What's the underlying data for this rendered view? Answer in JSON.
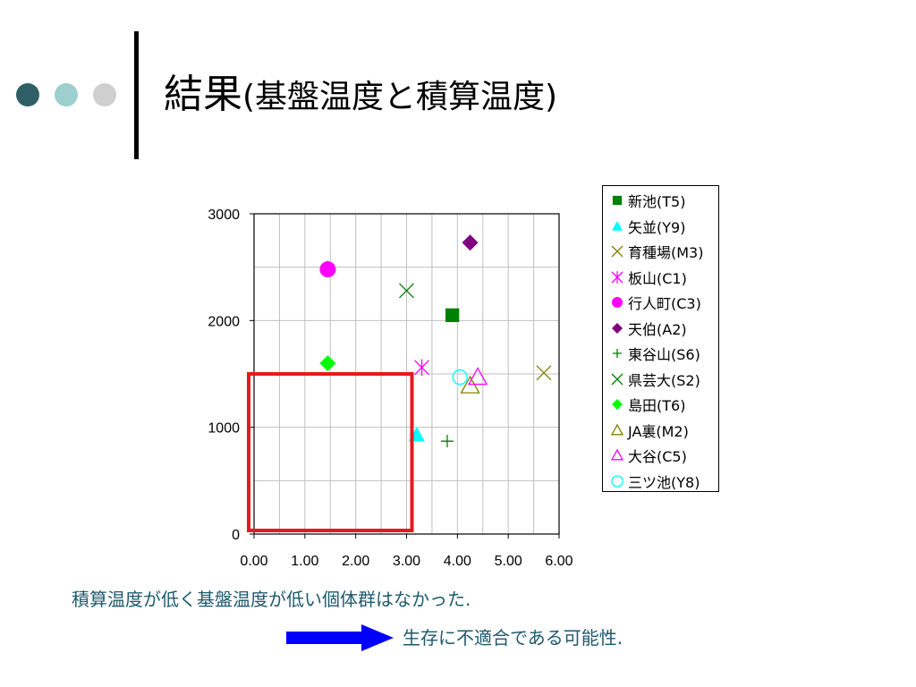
{
  "slide": {
    "title_main": "結果",
    "title_sub": "(基盤温度と積算温度)",
    "dot_colors": [
      "#2f5f66",
      "#9ccfce",
      "#cfcfcf"
    ],
    "note1": "積算温度が低く基盤温度が低い個体群はなかった.",
    "note2": "生存に不適合である可能性."
  },
  "chart_data": {
    "type": "scatter",
    "xlim": [
      0,
      6
    ],
    "ylim": [
      0,
      3000
    ],
    "x_ticks": [
      "0.00",
      "1.00",
      "2.00",
      "3.00",
      "4.00",
      "5.00",
      "6.00"
    ],
    "y_ticks": [
      "0",
      "1000",
      "2000",
      "3000"
    ],
    "grid": true,
    "legend_position": "right",
    "highlight_region": {
      "x": [
        0,
        3.0
      ],
      "y": [
        0,
        1500
      ],
      "color": "#e8191d"
    },
    "series": [
      {
        "name": "新池(T5)",
        "marker": "square",
        "color": "#008000",
        "points": [
          [
            3.9,
            2050
          ]
        ]
      },
      {
        "name": "矢並(Y9)",
        "marker": "triangle-filled",
        "color": "#00ffff",
        "points": [
          [
            3.2,
            930
          ]
        ]
      },
      {
        "name": "育種場(M3)",
        "marker": "x",
        "color": "#808000",
        "points": [
          [
            5.7,
            1510
          ]
        ]
      },
      {
        "name": "板山(C1)",
        "marker": "asterisk",
        "color": "#ff00ff",
        "points": [
          [
            3.3,
            1560
          ]
        ]
      },
      {
        "name": "行人町(C3)",
        "marker": "circle-filled",
        "color": "#ff00ff",
        "points": [
          [
            1.45,
            2480
          ]
        ]
      },
      {
        "name": "天伯(A2)",
        "marker": "diamond",
        "color": "#800080",
        "points": [
          [
            4.25,
            2730
          ]
        ]
      },
      {
        "name": "東谷山(S6)",
        "marker": "plus",
        "color": "#008000",
        "points": [
          [
            3.8,
            870
          ]
        ]
      },
      {
        "name": "県芸大(S2)",
        "marker": "x",
        "color": "#008000",
        "points": [
          [
            3.0,
            2280
          ]
        ]
      },
      {
        "name": "島田(T6)",
        "marker": "diamond",
        "color": "#00ff00",
        "points": [
          [
            1.45,
            1600
          ]
        ]
      },
      {
        "name": "JA裏(M2)",
        "marker": "triangle-open",
        "color": "#808000",
        "points": [
          [
            4.25,
            1390
          ]
        ]
      },
      {
        "name": "大谷(C5)",
        "marker": "triangle-open",
        "color": "#ff00ff",
        "points": [
          [
            4.4,
            1470
          ]
        ]
      },
      {
        "name": "三ツ池(Y8)",
        "marker": "circle-open",
        "color": "#00ffff",
        "points": [
          [
            4.05,
            1470
          ]
        ]
      }
    ]
  }
}
